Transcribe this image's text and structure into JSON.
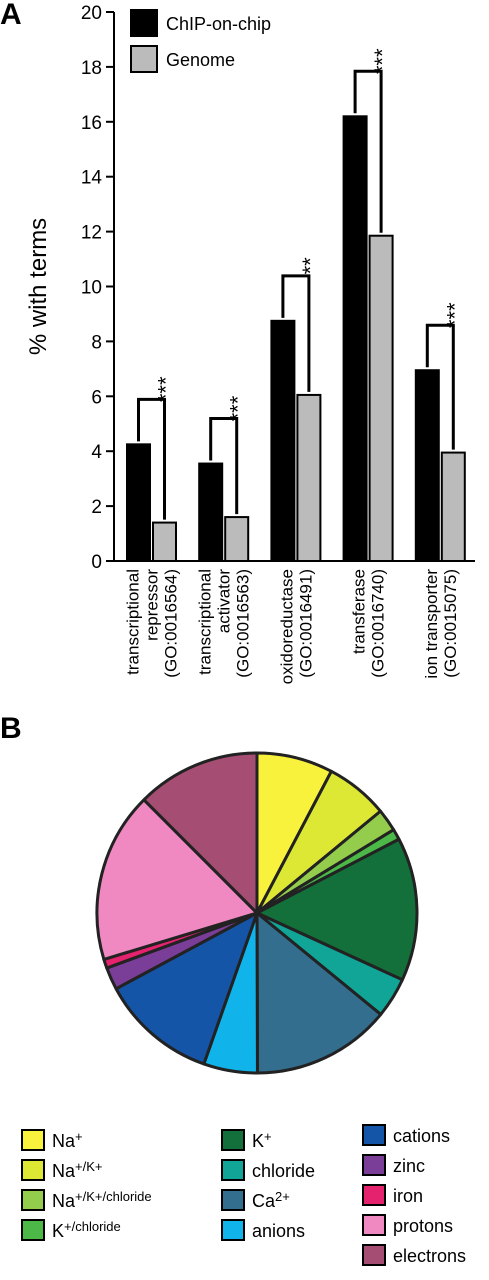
{
  "panels": {
    "a_label": "A",
    "b_label": "B"
  },
  "chart_data": [
    {
      "type": "bar",
      "ylabel": "% with terms",
      "ylim": [
        0,
        20
      ],
      "yticks": [
        "0",
        "2",
        "4",
        "6",
        "8",
        "10",
        "12",
        "14",
        "16",
        "18",
        "20"
      ],
      "legend_position": "top-left",
      "categories": [
        [
          "transcriptional",
          "repressor",
          "(GO:0016564)"
        ],
        [
          "transcriptional",
          "activator",
          "(GO:0016563)"
        ],
        [
          "oxidoreductase",
          "(GO:0016491)"
        ],
        [
          "transferase",
          "(GO:0016740)"
        ],
        [
          "ion transporter",
          "(GO:0015075)"
        ]
      ],
      "series": [
        {
          "name": "ChIP-on-chip",
          "color": "#000000",
          "values": [
            4.25,
            3.55,
            8.75,
            16.2,
            6.95
          ]
        },
        {
          "name": "Genome",
          "color": "#bbbbbb",
          "values": [
            1.4,
            1.6,
            6.05,
            11.85,
            3.95
          ]
        }
      ],
      "significance": [
        "***",
        "***",
        "**",
        "***",
        "***"
      ]
    },
    {
      "type": "pie",
      "legend_position": "bottom",
      "slices": [
        {
          "label": "Na+",
          "base": "Na",
          "sup": "+",
          "value": 0.085,
          "color": "#f8f23c"
        },
        {
          "label": "Na+/K+",
          "base": "Na",
          "sup": "+/K+",
          "value": 0.07,
          "color": "#dde834"
        },
        {
          "label": "Na+/K+/chloride",
          "base": "Na",
          "sup": "+/K+/chloride",
          "value": 0.025,
          "color": "#94cd4c"
        },
        {
          "label": "K+/chloride",
          "base": "K",
          "sup": "+/chloride",
          "value": 0.012,
          "color": "#4bb848"
        },
        {
          "label": "K+",
          "base": "K",
          "sup": "+",
          "value": 0.16,
          "color": "#14703a"
        },
        {
          "label": "chloride",
          "base": "chloride",
          "sup": "",
          "value": 0.045,
          "color": "#11a598"
        },
        {
          "label": "Ca2+",
          "base": "Ca",
          "sup": "2+",
          "value": 0.155,
          "color": "#336e8e"
        },
        {
          "label": "anions",
          "base": "anions",
          "sup": "",
          "value": 0.06,
          "color": "#11b4ea"
        },
        {
          "label": "cations",
          "base": "cations",
          "sup": "",
          "value": 0.13,
          "color": "#1555a7"
        },
        {
          "label": "zinc",
          "base": "zinc",
          "sup": "",
          "value": 0.025,
          "color": "#7a3d98"
        },
        {
          "label": "iron",
          "base": "iron",
          "sup": "",
          "value": 0.01,
          "color": "#e4226e"
        },
        {
          "label": "protons",
          "base": "protons",
          "sup": "",
          "value": 0.19,
          "color": "#f089c2"
        },
        {
          "label": "electrons",
          "base": "electrons",
          "sup": "",
          "value": 0.138,
          "color": "#a64d73"
        }
      ]
    }
  ]
}
